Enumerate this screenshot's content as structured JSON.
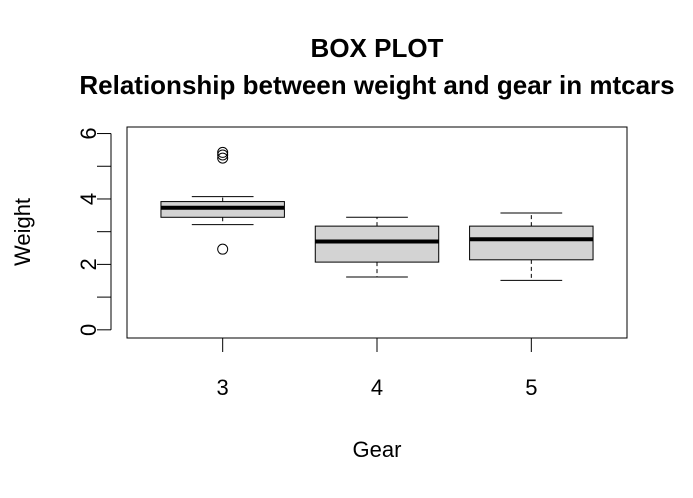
{
  "chart_data": {
    "type": "box",
    "title": "BOX PLOT",
    "subtitle": "Relationship between weight and gear in mtcars",
    "xlabel": "Gear",
    "ylabel": "Weight",
    "ylim": [
      -0.25,
      6.2
    ],
    "yticks": [
      0,
      2,
      4,
      6
    ],
    "grid": false,
    "categories": [
      "3",
      "4",
      "5"
    ],
    "boxes": [
      {
        "category": "3",
        "whisker_low": 3.215,
        "q1": 3.44,
        "median": 3.73,
        "q3": 3.92,
        "whisker_high": 4.07,
        "outliers": [
          2.465,
          5.25,
          5.345,
          5.424
        ]
      },
      {
        "category": "4",
        "whisker_low": 1.615,
        "q1": 2.07,
        "median": 2.7,
        "q3": 3.17,
        "whisker_high": 3.44,
        "outliers": []
      },
      {
        "category": "5",
        "whisker_low": 1.513,
        "q1": 2.14,
        "median": 2.77,
        "q3": 3.17,
        "whisker_high": 3.57,
        "outliers": []
      }
    ],
    "box_fill": "#d3d3d3",
    "line_color": "#000000"
  }
}
